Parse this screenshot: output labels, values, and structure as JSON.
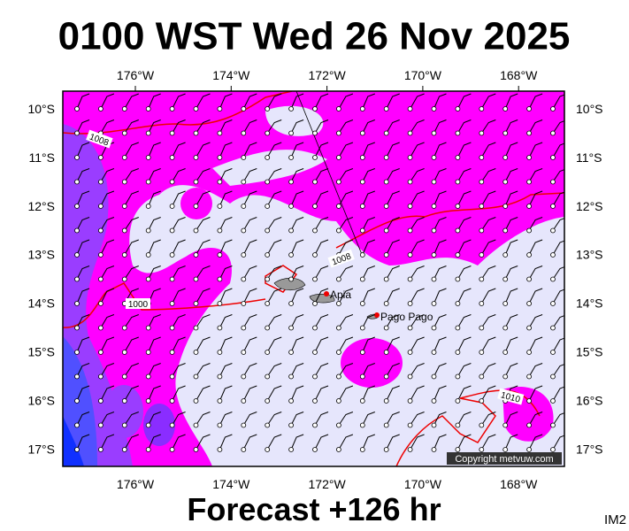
{
  "header": {
    "title": "0100 WST Wed 26 Nov 2025"
  },
  "map": {
    "lon_labels": [
      "176°W",
      "174°W",
      "172°W",
      "170°W",
      "168°W"
    ],
    "lat_labels": [
      "10°S",
      "11°S",
      "12°S",
      "13°S",
      "14°S",
      "15°S",
      "16°S",
      "17°S"
    ],
    "places": [
      "Apia",
      "Pago Pago"
    ],
    "isobar_labels": [
      "1008",
      "1008",
      "1000",
      "1010"
    ],
    "copyright": "Copyright metvuw.com"
  },
  "footer": {
    "forecast": "Forecast +126 hr",
    "stamp": "IM2"
  }
}
